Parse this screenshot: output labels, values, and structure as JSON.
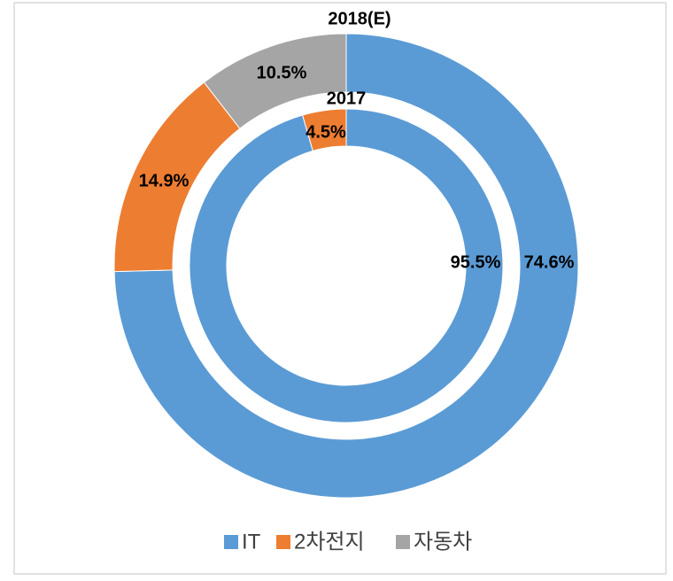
{
  "chart_data": {
    "type": "donut",
    "categories": [
      "IT",
      "2차전지",
      "자동차"
    ],
    "colors": [
      "#5b9bd5",
      "#ed7d31",
      "#a5a5a5"
    ],
    "series": [
      {
        "name": "2018(E)",
        "values": [
          74.6,
          14.9,
          10.5
        ],
        "value_labels": [
          "74.6%",
          "14.9%",
          "10.5%"
        ]
      },
      {
        "name": "2017",
        "values": [
          95.5,
          4.5,
          0
        ],
        "value_labels": [
          "95.5%",
          "4.5%",
          null
        ]
      }
    ],
    "legend": "bottom"
  }
}
